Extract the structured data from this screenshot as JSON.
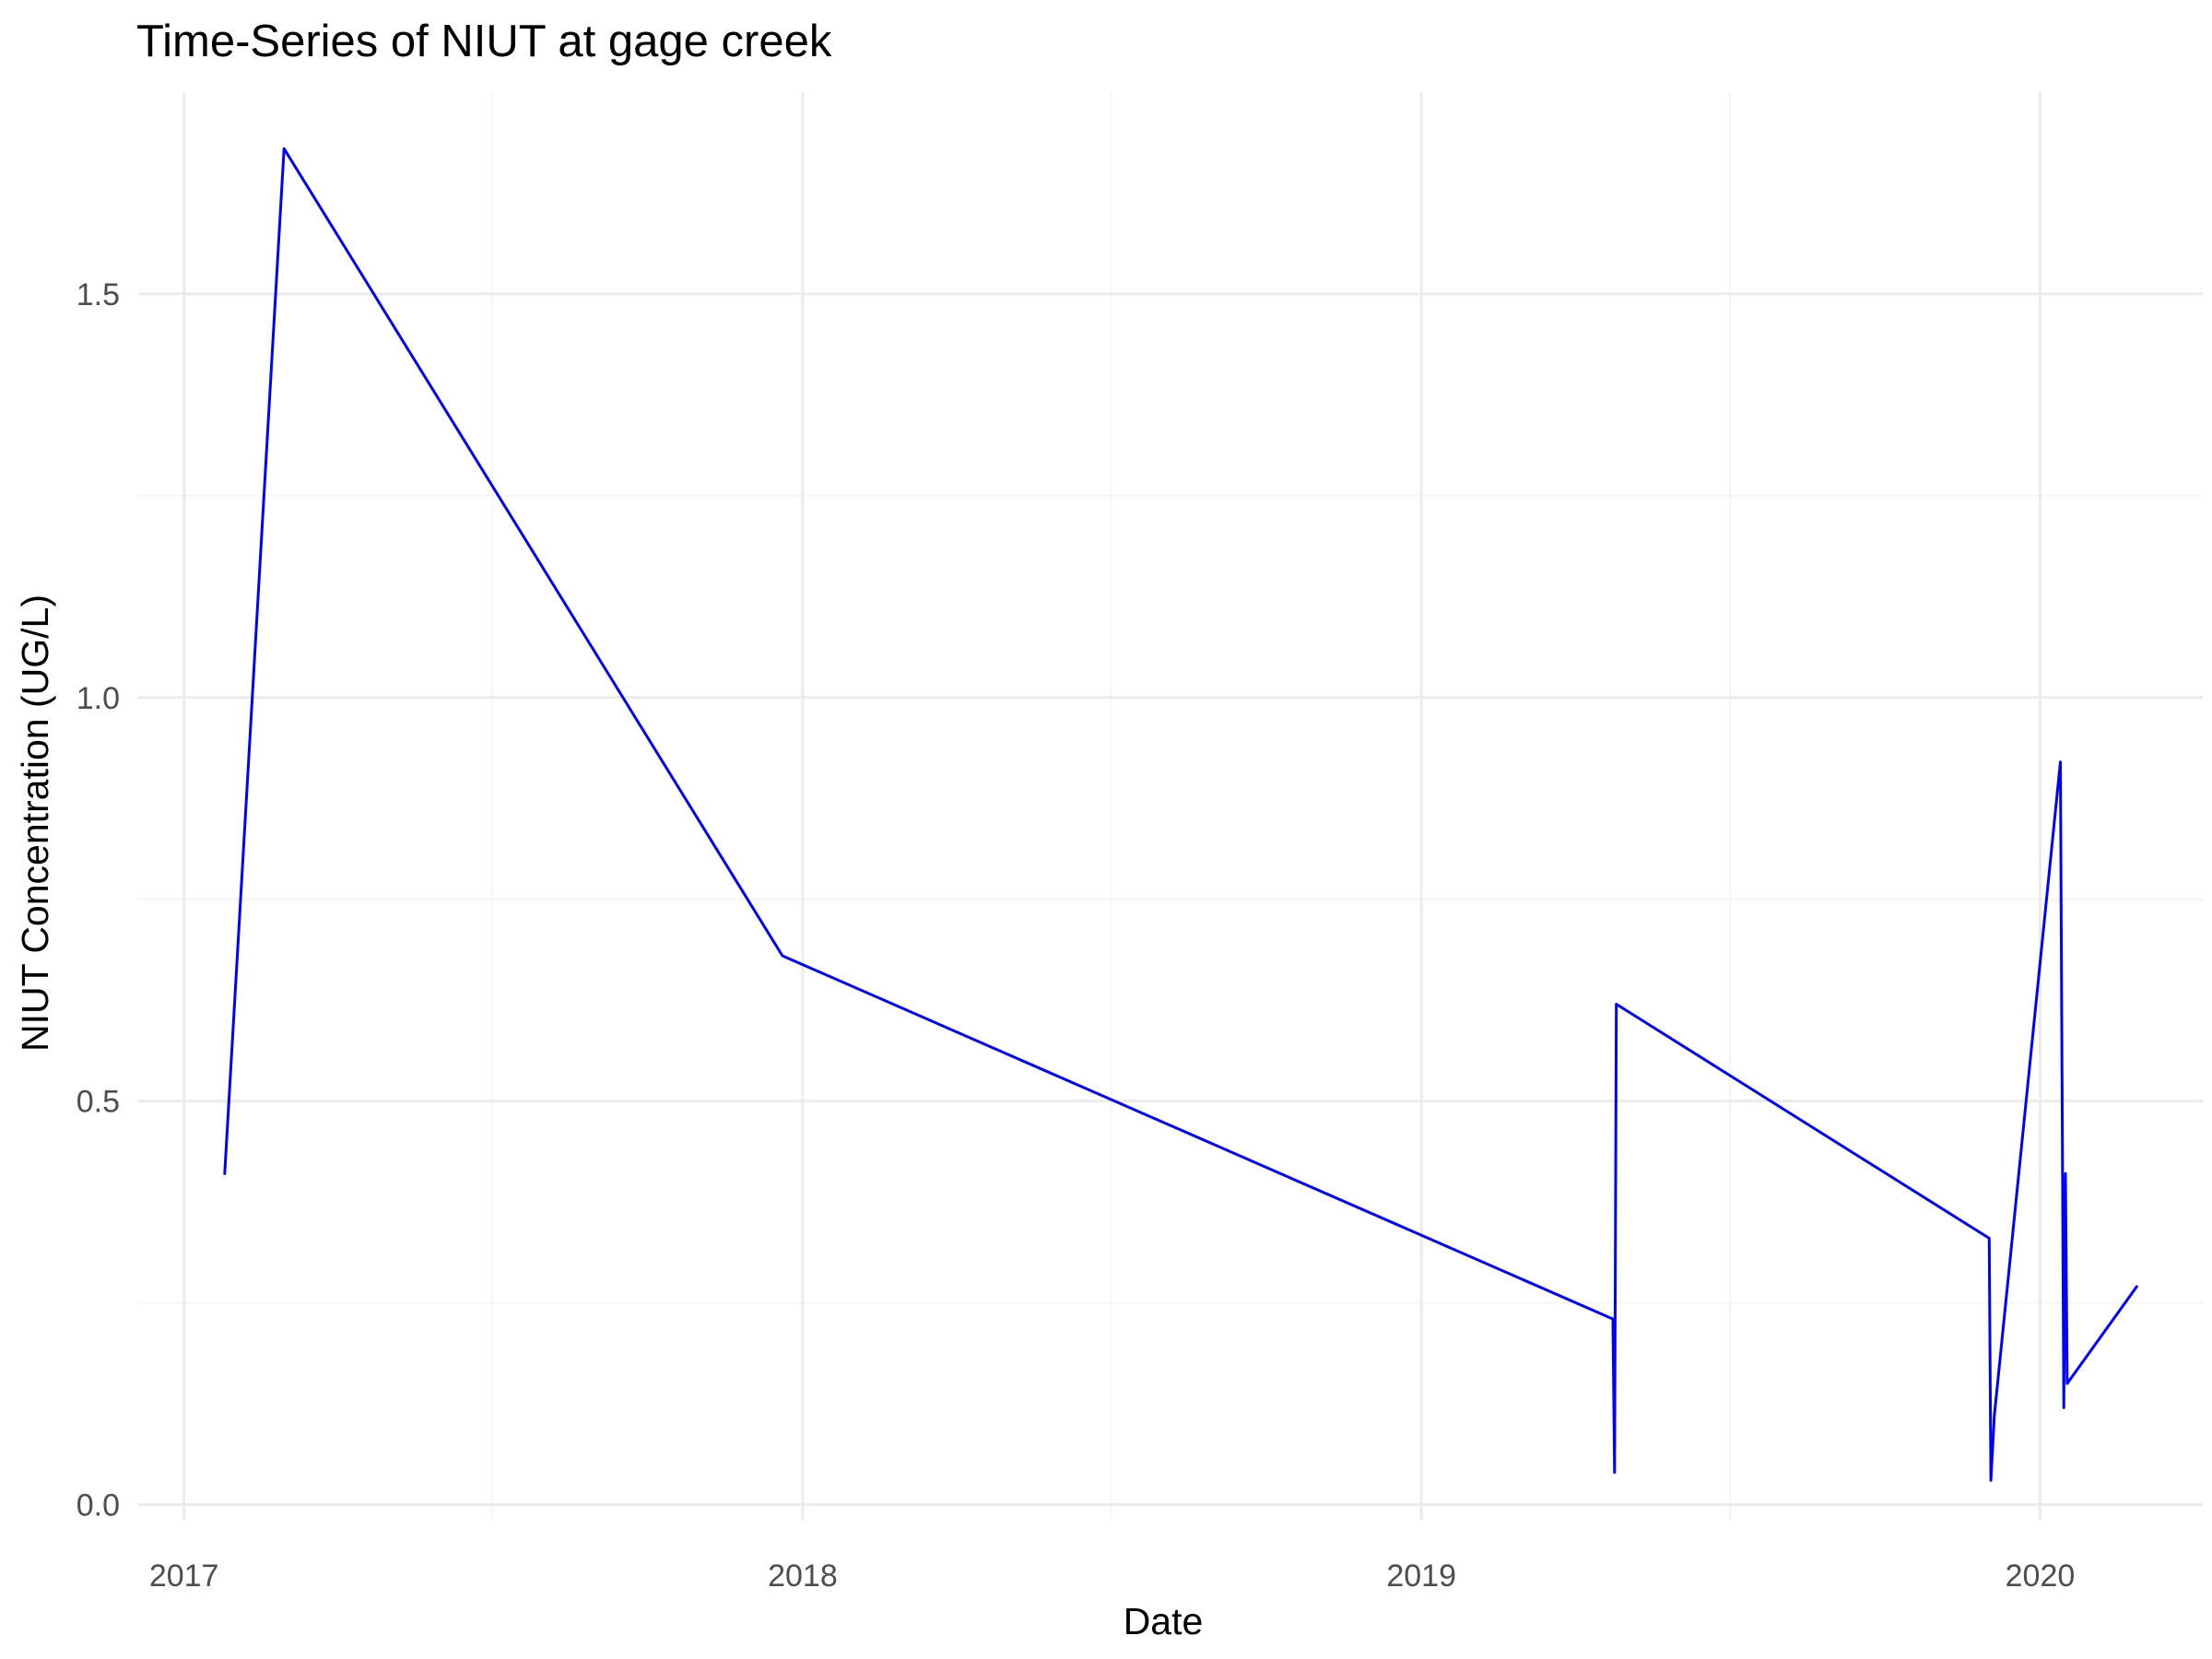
{
  "chart_data": {
    "type": "line",
    "title": "Time-Series of NIUT at gage creek",
    "xlabel": "Date",
    "ylabel": "NIUT Concentration (UG/L)",
    "x_ticks": [
      "2017",
      "2018",
      "2019",
      "2020"
    ],
    "y_ticks": [
      "0.0",
      "0.5",
      "1.0",
      "1.5"
    ],
    "xlim": [
      "2016-12-05",
      "2020-04-06"
    ],
    "ylim": [
      -0.02,
      1.75
    ],
    "grid": true,
    "line_color": "#0000ff",
    "series": [
      {
        "points": [
          [
            "2017-01-25",
            0.41
          ],
          [
            "2017-03-01",
            1.68
          ],
          [
            "2017-12-20",
            0.68
          ],
          [
            "2019-04-24",
            0.23
          ],
          [
            "2019-04-25",
            0.04
          ],
          [
            "2019-04-26",
            0.62
          ],
          [
            "2019-12-02",
            0.33
          ],
          [
            "2019-12-03",
            0.03
          ],
          [
            "2019-12-05",
            0.11
          ],
          [
            "2020-01-13",
            0.92
          ],
          [
            "2020-01-14",
            0.51
          ],
          [
            "2020-01-15",
            0.12
          ],
          [
            "2020-01-16",
            0.41
          ],
          [
            "2020-01-17",
            0.15
          ],
          [
            "2020-02-27",
            0.27
          ]
        ]
      }
    ]
  }
}
